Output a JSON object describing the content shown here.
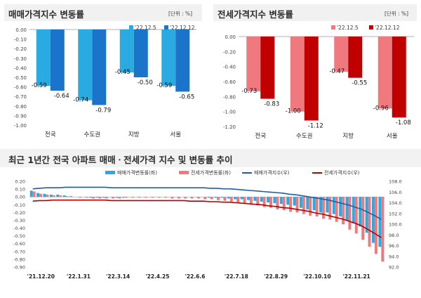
{
  "chart_data": [
    {
      "type": "bar",
      "title": "매매가격지수 변동률",
      "unit_label": "[단위 : %]",
      "categories": [
        "전국",
        "수도권",
        "지방",
        "서울"
      ],
      "series": [
        {
          "name": "'22.12.5",
          "values": [
            -0.59,
            -0.74,
            -0.45,
            -0.59
          ],
          "labels": [
            "-0.59",
            "-0.74",
            "-0.45",
            "-0.59"
          ]
        },
        {
          "name": "'22.12.12",
          "values": [
            -0.64,
            -0.79,
            -0.5,
            -0.65
          ],
          "labels": [
            "-0.64",
            "-0.79",
            "-0.50",
            "-0.65"
          ]
        }
      ],
      "ylim": [
        -1.0,
        0.0
      ],
      "yticks": [
        "0.00",
        "-0.10",
        "-0.20",
        "-0.30",
        "-0.40",
        "-0.50",
        "-0.60",
        "-0.70",
        "-0.80",
        "-0.90",
        "-1.00"
      ],
      "colors": [
        "#29abe2",
        "#1a74c9"
      ],
      "legend": "top-right"
    },
    {
      "type": "bar",
      "title": "전세가격지수 변동률",
      "unit_label": "[단위 : %]",
      "categories": [
        "전국",
        "수도권",
        "지방",
        "서울"
      ],
      "series": [
        {
          "name": "'22.12.5",
          "values": [
            -0.73,
            -1.0,
            -0.47,
            -0.96
          ],
          "labels": [
            "-0.73",
            "-1.00",
            "-0.47",
            "-0.96"
          ]
        },
        {
          "name": "'22.12.12",
          "values": [
            -0.83,
            -1.12,
            -0.55,
            -1.08
          ],
          "labels": [
            "-0.83",
            "-1.12",
            "-0.55",
            "-1.08"
          ]
        }
      ],
      "ylim": [
        -1.2,
        0.0
      ],
      "yticks": [
        "0.00",
        "-0.20",
        "-0.40",
        "-0.60",
        "-0.80",
        "-1.00",
        "-1.20"
      ],
      "colors": [
        "#f0797f",
        "#c00000"
      ],
      "legend": "top-right"
    },
    {
      "type": "bar+line",
      "title": "최근 1년간 전국 아파트 매매ㆍ전세가격 지수 및 변동률 추이",
      "legend_items": [
        "매매가격변동률(좌)",
        "전세가격변동률(좌)",
        "매매가격지수(우)",
        "전세가격지수(우)"
      ],
      "x_ticks": [
        "'21.12.20",
        "'22.1.31",
        "'22.3.14",
        "'22.4.25",
        "'22.6.6",
        "'22.7.18",
        "'22.8.29",
        "'22.10.10",
        "'22.11.21"
      ],
      "y_left_ticks": [
        "0.20",
        "0.10",
        "0.00",
        "-0.10",
        "-0.20",
        "-0.30",
        "-0.40",
        "-0.50",
        "-0.60",
        "-0.70",
        "-0.80",
        "-0.90"
      ],
      "y_left_lim": [
        -0.9,
        0.2
      ],
      "y_right_ticks": [
        "108.0",
        "106.0",
        "104.0",
        "102.0",
        "100.0",
        "98.0",
        "96.0",
        "94.0",
        "92.0"
      ],
      "y_right_lim": [
        92.0,
        108.0
      ],
      "sale_change": [
        0.08,
        0.05,
        0.04,
        0.03,
        0.03,
        0.02,
        0.01,
        0.0,
        0.0,
        -0.01,
        -0.01,
        -0.01,
        0.0,
        -0.01,
        -0.01,
        0.0,
        0.0,
        0.0,
        0.0,
        0.0,
        0.0,
        0.0,
        0.0,
        0.0,
        0.0,
        0.0,
        0.0,
        -0.01,
        -0.01,
        -0.01,
        -0.02,
        -0.03,
        -0.03,
        -0.04,
        -0.05,
        -0.06,
        -0.07,
        -0.08,
        -0.09,
        -0.1,
        -0.11,
        -0.14,
        -0.16,
        -0.17,
        -0.2,
        -0.2,
        -0.22,
        -0.25,
        -0.3,
        -0.34,
        -0.38,
        -0.46,
        -0.59,
        -0.64
      ],
      "jeonse_change": [
        0.07,
        0.04,
        0.03,
        0.02,
        0.02,
        0.01,
        0.0,
        -0.01,
        -0.01,
        -0.02,
        -0.02,
        -0.02,
        -0.02,
        -0.02,
        -0.01,
        -0.01,
        -0.01,
        -0.01,
        -0.01,
        -0.01,
        -0.01,
        -0.02,
        -0.02,
        -0.02,
        -0.02,
        -0.02,
        -0.03,
        -0.03,
        -0.04,
        -0.05,
        -0.06,
        -0.07,
        -0.08,
        -0.1,
        -0.11,
        -0.13,
        -0.14,
        -0.16,
        -0.17,
        -0.19,
        -0.2,
        -0.22,
        -0.24,
        -0.25,
        -0.28,
        -0.29,
        -0.32,
        -0.35,
        -0.42,
        -0.47,
        -0.55,
        -0.64,
        -0.73,
        -0.83
      ],
      "sale_index": [
        106.6,
        106.7,
        106.8,
        106.8,
        106.8,
        106.9,
        106.9,
        106.9,
        106.9,
        106.9,
        106.9,
        106.9,
        106.8,
        106.8,
        106.8,
        106.8,
        106.8,
        106.8,
        106.8,
        106.8,
        106.8,
        106.8,
        106.8,
        106.8,
        106.8,
        106.8,
        106.8,
        106.7,
        106.7,
        106.6,
        106.6,
        106.5,
        106.4,
        106.3,
        106.2,
        106.1,
        106.0,
        105.9,
        105.8,
        105.6,
        105.5,
        105.3,
        105.1,
        104.9,
        104.7,
        104.5,
        104.2,
        103.9,
        103.6,
        103.2,
        102.8,
        102.2,
        101.6,
        100.9
      ],
      "jeonse_index": [
        104.3,
        104.4,
        104.4,
        104.5,
        104.5,
        104.5,
        104.5,
        104.5,
        104.5,
        104.5,
        104.5,
        104.5,
        104.4,
        104.4,
        104.4,
        104.4,
        104.4,
        104.4,
        104.4,
        104.4,
        104.4,
        104.4,
        104.4,
        104.4,
        104.3,
        104.3,
        104.3,
        104.2,
        104.2,
        104.1,
        104.1,
        104.0,
        103.9,
        103.8,
        103.7,
        103.6,
        103.4,
        103.3,
        103.1,
        103.0,
        102.8,
        102.6,
        102.4,
        102.1,
        101.9,
        101.6,
        101.3,
        101.0,
        100.6,
        100.2,
        99.7,
        99.0,
        98.3,
        97.5
      ],
      "colors": {
        "sale_bar": "#29abe2",
        "jeonse_bar": "#f0797f",
        "sale_line": "#1f5fa0",
        "jeonse_line": "#b00000"
      }
    }
  ]
}
